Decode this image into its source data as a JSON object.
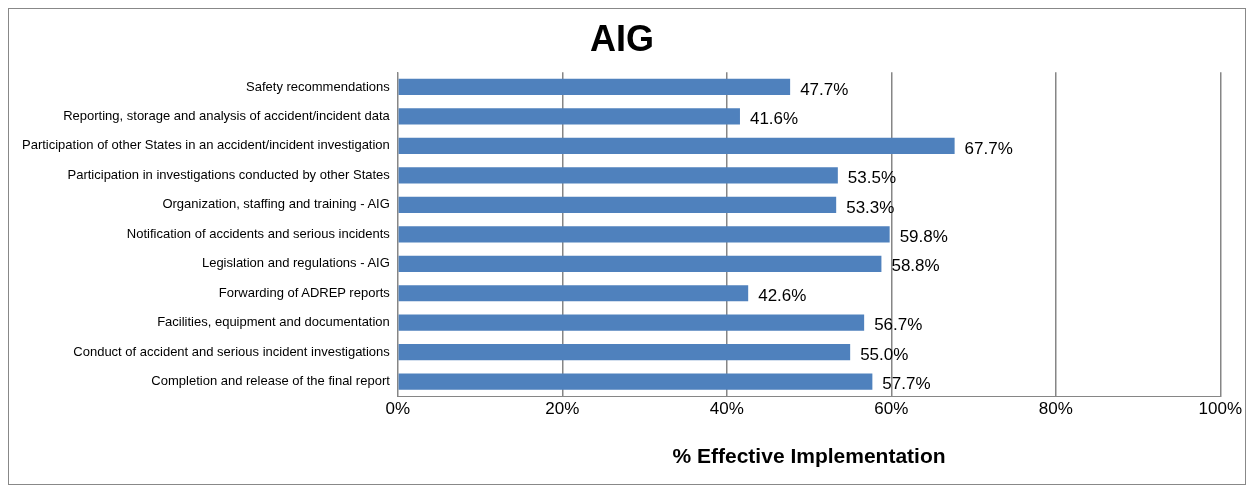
{
  "chart_data": {
    "type": "bar",
    "orientation": "horizontal",
    "title": "AIG",
    "xlabel": "% Effective Implementation",
    "categories": [
      "Safety recommendations",
      "Reporting, storage and analysis of accident/incident data",
      "Participation of other States in an accident/incident investigation",
      "Participation in investigations conducted by other States",
      "Organization, staffing and training - AIG",
      "Notification of accidents and serious incidents",
      "Legislation and regulations - AIG",
      "Forwarding of ADREP reports",
      "Facilities, equipment and documentation",
      "Conduct of accident and serious incident investigations",
      "Completion and release of the final report"
    ],
    "values": [
      47.7,
      41.6,
      67.7,
      53.5,
      53.3,
      59.8,
      58.8,
      42.6,
      56.7,
      55.0,
      57.7
    ],
    "value_labels": [
      "47.7%",
      "41.6%",
      "67.7%",
      "53.5%",
      "53.3%",
      "59.8%",
      "58.8%",
      "42.6%",
      "56.7%",
      "55.0%",
      "57.7%"
    ],
    "color": "#4f81bd",
    "xlim": [
      0,
      100
    ],
    "xticks": [
      {
        "value": 0,
        "label": "0%"
      },
      {
        "value": 20,
        "label": "20%"
      },
      {
        "value": 40,
        "label": "40%"
      },
      {
        "value": 60,
        "label": "60%"
      },
      {
        "value": 80,
        "label": "80%"
      },
      {
        "value": 100,
        "label": "100%"
      }
    ],
    "grid": "x",
    "legend": false
  }
}
